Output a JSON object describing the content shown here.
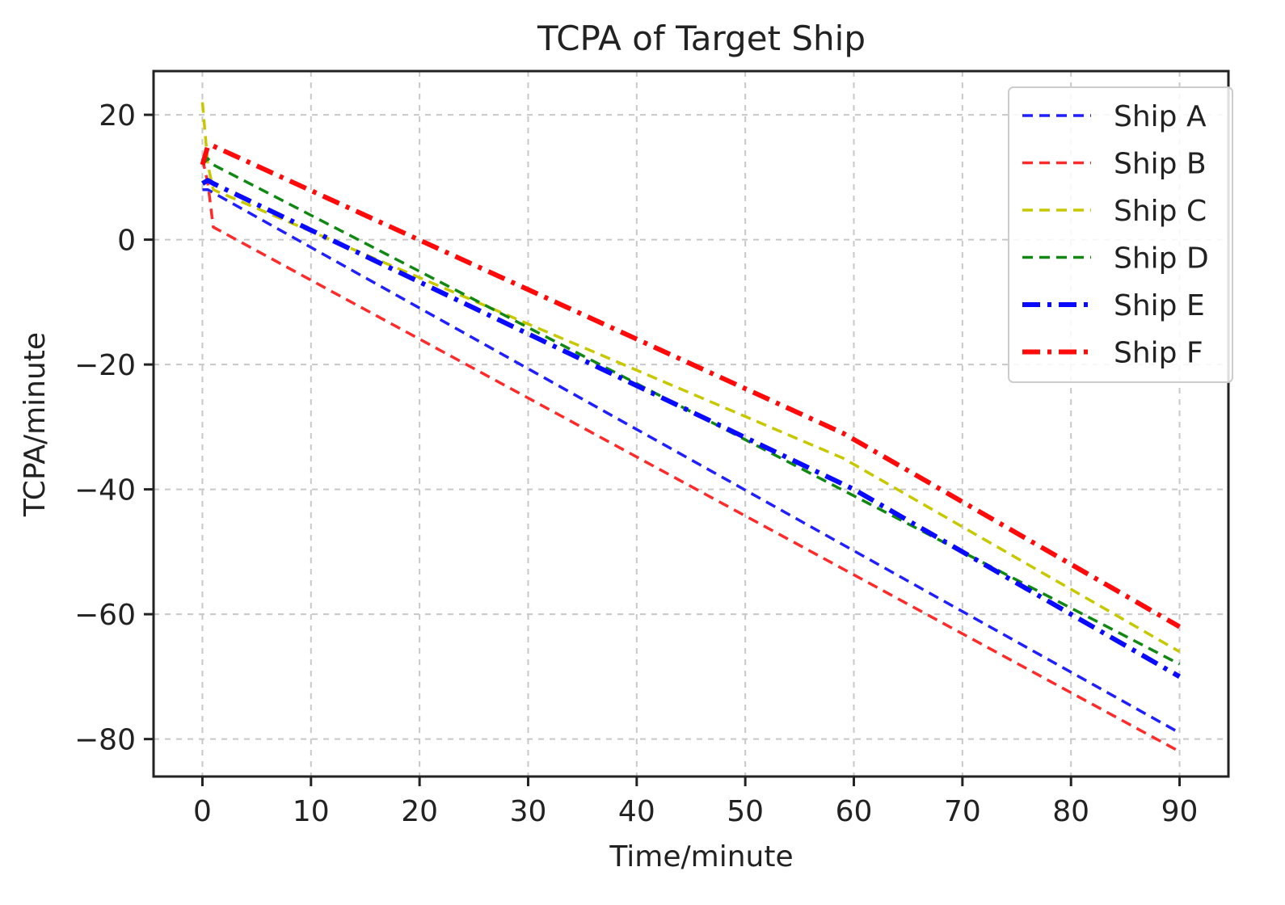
{
  "chart_data": {
    "type": "line",
    "title": "TCPA of Target Ship",
    "xlabel": "Time/minute",
    "ylabel": "TCPA/minute",
    "xlim": [
      -4.5,
      94.5
    ],
    "ylim": [
      -86,
      27
    ],
    "xticks": [
      0,
      10,
      20,
      30,
      40,
      50,
      60,
      70,
      80,
      90
    ],
    "yticks": [
      20,
      0,
      -20,
      -40,
      -60,
      -80
    ],
    "ytick_labels": [
      "20",
      "0",
      "−20",
      "−40",
      "−60",
      "−80"
    ],
    "grid": true,
    "legend_position": "top-right",
    "series": [
      {
        "name": "Ship A",
        "color": "#1f1fff",
        "style": "dashed",
        "weight": "thin",
        "x": [
          0,
          0.5,
          90
        ],
        "y": [
          8,
          8,
          -79
        ]
      },
      {
        "name": "Ship B",
        "color": "#ff2a2a",
        "style": "dashed",
        "weight": "thin",
        "x": [
          0,
          0.5,
          1,
          90
        ],
        "y": [
          13,
          9,
          2,
          -82
        ]
      },
      {
        "name": "Ship C",
        "color": "#c8c800",
        "style": "dashed",
        "weight": "thin",
        "x": [
          0,
          0.5,
          1,
          59,
          60,
          90
        ],
        "y": [
          22,
          12,
          8,
          -35,
          -36,
          -66
        ]
      },
      {
        "name": "Ship D",
        "color": "#118811",
        "style": "dashed",
        "weight": "thin",
        "x": [
          0,
          0.5,
          1,
          90
        ],
        "y": [
          12,
          13,
          12,
          -68
        ]
      },
      {
        "name": "Ship E",
        "color": "#0a0aff",
        "style": "dashdot",
        "weight": "thick",
        "x": [
          0,
          0.5,
          1,
          60,
          90
        ],
        "y": [
          9,
          9.5,
          9,
          -40,
          -70
        ]
      },
      {
        "name": "Ship F",
        "color": "#ff0a0a",
        "style": "dashdot",
        "weight": "thick",
        "x": [
          0,
          0.5,
          1,
          59,
          60,
          90
        ],
        "y": [
          12,
          15,
          15,
          -31,
          -32,
          -62
        ]
      }
    ]
  }
}
